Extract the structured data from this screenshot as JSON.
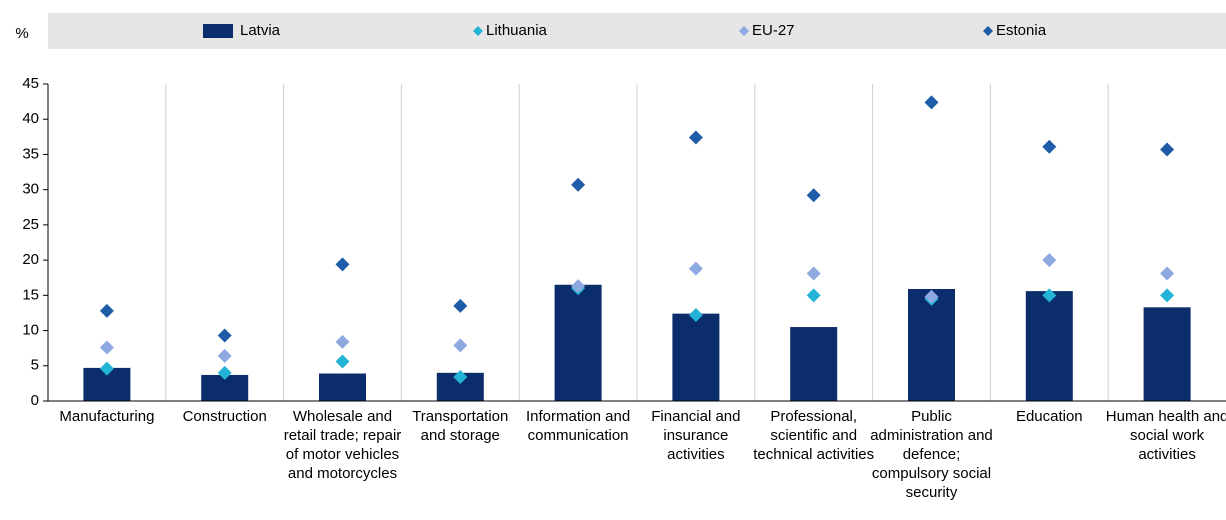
{
  "chart_data": {
    "type": "bar",
    "y_label": "%",
    "categories": [
      "Manufacturing",
      "Construction",
      "Wholesale and retail trade; repair of motor vehicles and motorcycles",
      "Transportation and storage",
      "Information and communication",
      "Financial and insurance activities",
      "Professional, scientific and technical activities",
      "Public administration and defence; compulsory social security",
      "Education",
      "Human health and social work activities"
    ],
    "series": [
      {
        "name": "Latvia",
        "color": "#0c2d6b",
        "marker": "bar",
        "values": [
          4.7,
          3.7,
          3.9,
          4.0,
          16.5,
          12.4,
          10.5,
          15.9,
          15.6,
          13.3
        ]
      },
      {
        "name": "Lithuania",
        "color": "#22b3d6",
        "marker": "diamond",
        "values": [
          4.6,
          4.0,
          5.6,
          3.4,
          16.0,
          12.2,
          15.0,
          14.5,
          15.0,
          15.0
        ]
      },
      {
        "name": "EU-27",
        "color": "#8ea8e0",
        "marker": "diamond",
        "values": [
          7.6,
          6.4,
          8.4,
          7.9,
          16.3,
          18.8,
          18.1,
          14.8,
          20.0,
          18.1
        ]
      },
      {
        "name": "Estonia",
        "color": "#1f5ca8",
        "marker": "diamond",
        "values": [
          12.8,
          9.3,
          19.4,
          13.5,
          30.7,
          37.4,
          29.2,
          42.4,
          36.1,
          35.7
        ]
      }
    ],
    "ylim": [
      0,
      45
    ],
    "yticks": [
      0,
      5,
      10,
      15,
      20,
      25,
      30,
      35,
      40,
      45
    ],
    "legend": "top"
  }
}
